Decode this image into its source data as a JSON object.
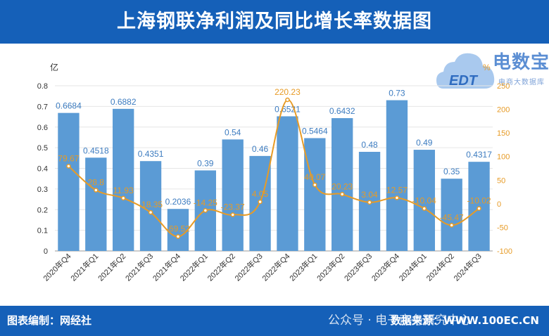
{
  "header": {
    "title": "上海钢联净利润及同比增长率数据图"
  },
  "footer": {
    "left_text": "图表编制：网经社",
    "right_text": "数据来源：WWW.100EC.CN",
    "watermark_text": "公众号 · 电子商务研究中心"
  },
  "logo": {
    "main_text": "电数宝",
    "sub_text": "电商大数据库",
    "badge_text": "EDT"
  },
  "colors": {
    "bar": "#5b9bd5",
    "line": "#e79b26",
    "header_bg": "#1560b8",
    "axis_left": "#333333",
    "axis_right": "#e79b26"
  },
  "chart_data": {
    "type": "bar+line",
    "categories": [
      "2020年Q4",
      "2021年Q1",
      "2021年Q2",
      "2021年Q3",
      "2021年Q4",
      "2022年Q1",
      "2022年Q2",
      "2022年Q3",
      "2022年Q4",
      "2023年Q1",
      "2023年Q2",
      "2023年Q3",
      "2023年Q4",
      "2024年Q1",
      "2024年Q2",
      "2024年Q3"
    ],
    "left_axis": {
      "unit_label": "亿",
      "min": 0,
      "max": 0.8,
      "ticks": [
        "0",
        "0.1",
        "0.2",
        "0.3",
        "0.4",
        "0.5",
        "0.6",
        "0.7",
        "0.8"
      ]
    },
    "right_axis": {
      "unit_label": "%",
      "min": -100,
      "max": 250,
      "ticks": [
        "-100",
        "-50",
        "0",
        "50",
        "100",
        "150",
        "200",
        "250"
      ]
    },
    "series": [
      {
        "name": "净利润",
        "kind": "bar",
        "values": [
          0.6684,
          0.4518,
          0.6882,
          0.4351,
          0.2036,
          0.39,
          0.54,
          0.46,
          0.6521,
          0.5464,
          0.6432,
          0.48,
          0.73,
          0.49,
          0.35,
          0.4317
        ],
        "labels": [
          "0.6684",
          "0.4518",
          "0.6882",
          "0.4351",
          "0.2036",
          "0.39",
          "0.54",
          "0.46",
          "0.6521",
          "0.5464",
          "0.6432",
          "0.48",
          "0.73",
          "0.49",
          "0.35",
          "0.4317"
        ]
      },
      {
        "name": "同比增长率",
        "kind": "line",
        "values": [
          79.67,
          28.8,
          11.93,
          -18.35,
          -69.52,
          -14.25,
          -23.37,
          4.05,
          220.23,
          40.07,
          20.23,
          3.04,
          12.57,
          -10.04,
          -45.47,
          -10.02
        ],
        "labels": [
          "79.67",
          "28.8",
          "11.93",
          "-18.35",
          "-69.52",
          "-14.25",
          "-23.37",
          "4.05",
          "220.23",
          "40.07",
          "20.23",
          "3.04",
          "12.57",
          "-10.04",
          "-45.47",
          "-10.02"
        ]
      }
    ]
  }
}
